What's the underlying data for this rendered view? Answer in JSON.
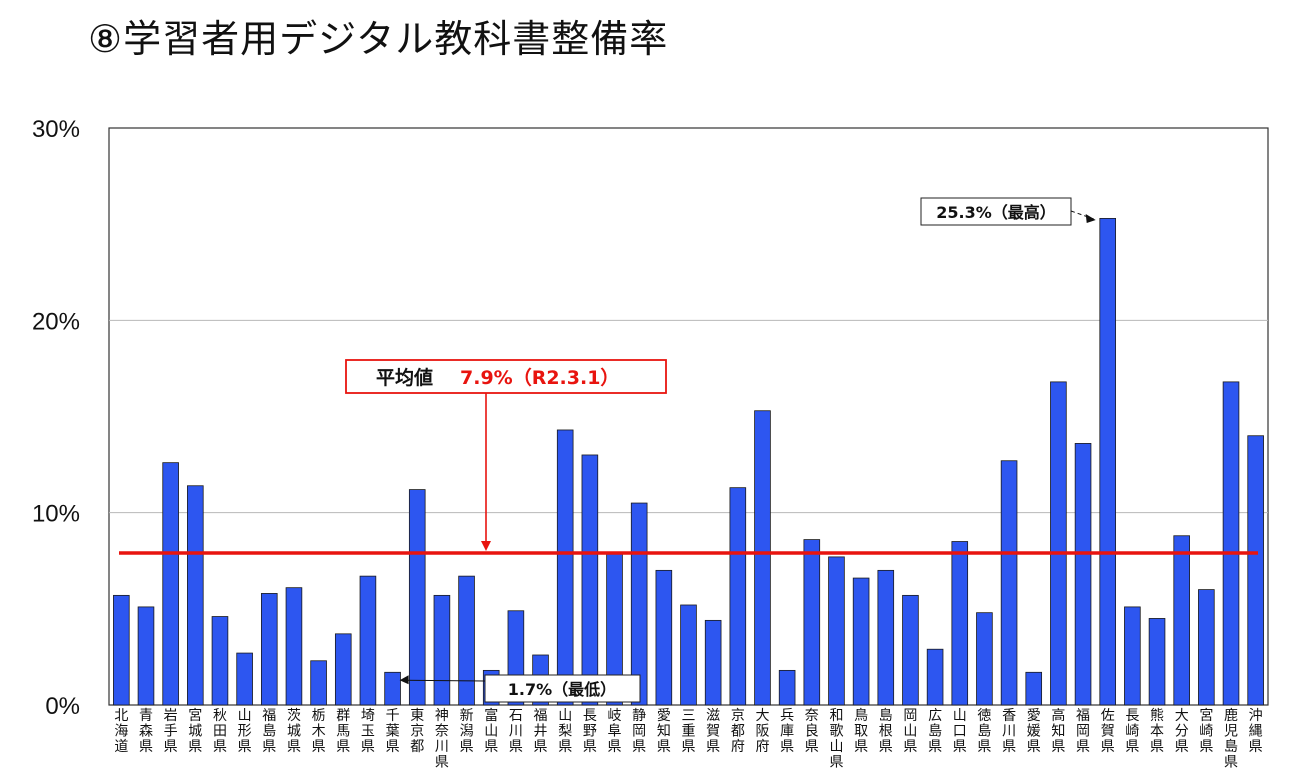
{
  "title": "⑧学習者用デジタル教科書整備率",
  "chart_data": {
    "type": "bar",
    "title": "⑧学習者用デジタル教科書整備率",
    "xlabel": "",
    "ylabel": "",
    "ylim": [
      0,
      30
    ],
    "yticks": [
      "0%",
      "10%",
      "20%",
      "30%"
    ],
    "grid": true,
    "bar_color": "#2d56f0",
    "categories": [
      "北海道",
      "青森県",
      "岩手県",
      "宮城県",
      "秋田県",
      "山形県",
      "福島県",
      "茨城県",
      "栃木県",
      "群馬県",
      "埼玉県",
      "千葉県",
      "東京都",
      "神奈川県",
      "新潟県",
      "富山県",
      "石川県",
      "福井県",
      "山梨県",
      "長野県",
      "岐阜県",
      "静岡県",
      "愛知県",
      "三重県",
      "滋賀県",
      "京都府",
      "大阪府",
      "兵庫県",
      "奈良県",
      "和歌山県",
      "鳥取県",
      "島根県",
      "岡山県",
      "広島県",
      "山口県",
      "徳島県",
      "香川県",
      "愛媛県",
      "高知県",
      "福岡県",
      "佐賀県",
      "長崎県",
      "熊本県",
      "大分県",
      "宮崎県",
      "鹿児島県",
      "沖縄県"
    ],
    "values": [
      5.7,
      5.1,
      12.6,
      11.4,
      4.6,
      2.7,
      5.8,
      6.1,
      2.3,
      3.7,
      6.7,
      1.7,
      11.2,
      5.7,
      6.7,
      1.8,
      4.9,
      2.6,
      14.3,
      13.0,
      7.9,
      10.5,
      7.0,
      5.2,
      4.4,
      11.3,
      15.3,
      1.8,
      8.6,
      7.7,
      6.6,
      7.0,
      5.7,
      2.9,
      8.5,
      4.8,
      12.7,
      1.7,
      16.8,
      13.6,
      25.3,
      5.1,
      4.5,
      8.8,
      6.0,
      16.8,
      14.0
    ],
    "average": {
      "value": 7.9,
      "line_color": "#e8140f",
      "label": "平均値",
      "value_text": "7.9%（R2.3.1）"
    },
    "annotations": {
      "max": {
        "text": "25.3%（最高）",
        "category": "佐賀県"
      },
      "min": {
        "text": "1.7%（最低）",
        "category": "千葉県"
      }
    }
  }
}
